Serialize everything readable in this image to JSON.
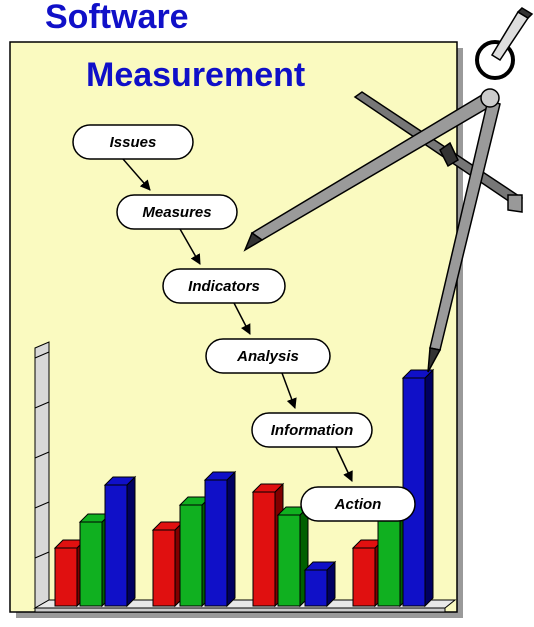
{
  "header": {
    "title_line1": "Software",
    "title_line2": "Measurement"
  },
  "nodes": [
    {
      "label": "Issues"
    },
    {
      "label": "Measures"
    },
    {
      "label": "Indicators"
    },
    {
      "label": "Analysis"
    },
    {
      "label": "Information"
    },
    {
      "label": "Action"
    }
  ]
}
